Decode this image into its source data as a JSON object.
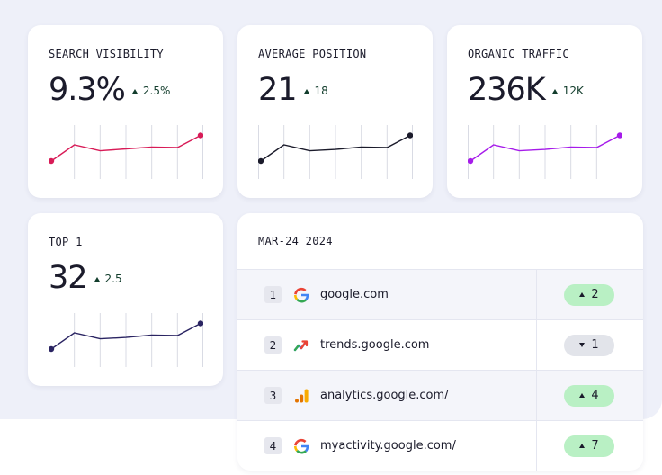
{
  "metrics": [
    {
      "title": "SEARCH VISIBILITY",
      "value": "9.3%",
      "delta": "2.5",
      "delta_suffix": "%",
      "delta_display": "2.5%",
      "trend": "up",
      "line_color": "#d81b57",
      "series": [
        0.0,
        0.6,
        0.38,
        0.45,
        0.52,
        0.5,
        0.95
      ]
    },
    {
      "title": "AVERAGE POSITION",
      "value": "21",
      "delta_display": "18",
      "trend": "up",
      "line_color": "#1b1b2b",
      "series": [
        0.0,
        0.6,
        0.38,
        0.43,
        0.52,
        0.5,
        0.95
      ]
    },
    {
      "title": "ORGANIC TRAFFIC",
      "value": "236K",
      "delta_display": "12K",
      "trend": "up",
      "line_color": "#a61bea",
      "series": [
        0.0,
        0.6,
        0.38,
        0.43,
        0.52,
        0.5,
        0.95
      ]
    },
    {
      "title": "TOP 1",
      "value": "32",
      "delta_display": "2.5",
      "trend": "up",
      "line_color": "#2a2462",
      "series": [
        0.0,
        0.6,
        0.38,
        0.43,
        0.52,
        0.5,
        0.95
      ]
    }
  ],
  "table": {
    "date": "MAR-24 2024",
    "rows": [
      {
        "rank": "1",
        "icon": "google-icon",
        "site": "google.com",
        "change": "2",
        "direction": "up"
      },
      {
        "rank": "2",
        "icon": "trends-icon",
        "site": "trends.google.com",
        "change": "1",
        "direction": "down"
      },
      {
        "rank": "3",
        "icon": "analytics-icon",
        "site": "analytics.google.com/",
        "change": "4",
        "direction": "up"
      },
      {
        "rank": "4",
        "icon": "google-icon",
        "site": "myactivity.google.com/",
        "change": "7",
        "direction": "up"
      }
    ]
  },
  "colors": {
    "background": "#eef0f9",
    "positive_pill": "#b9f0c4",
    "negative_pill": "#e2e4ea",
    "delta_text": "#123d2c"
  }
}
